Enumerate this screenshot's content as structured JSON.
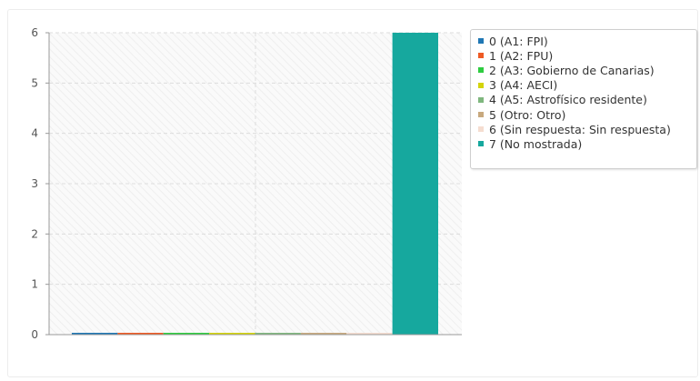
{
  "chart_data": {
    "type": "bar",
    "categories": [
      "0 (A1: FPI)",
      "1 (A2: FPU)",
      "2 (A3: Gobierno de Canarias)",
      "3 (A4: AECI)",
      "4 (A5: Astrofísico residente)",
      "5 (Otro: Otro)",
      "6 (Sin respuesta: Sin respuesta)",
      "7 (No mostrada)"
    ],
    "values": [
      0,
      0,
      0,
      0,
      0,
      0,
      0,
      6
    ],
    "colors": [
      "#1f77b4",
      "#ee5a24",
      "#2ecc40",
      "#d4d40a",
      "#7fb77e",
      "#c8a97e",
      "#f5ddd0",
      "#16a89e"
    ],
    "ylim": [
      0,
      6
    ],
    "yticks": [
      "0",
      "1",
      "2",
      "3",
      "4",
      "5",
      "6"
    ],
    "title": "",
    "xlabel": "",
    "ylabel": "",
    "grid": true,
    "legend_position": "right-top"
  }
}
